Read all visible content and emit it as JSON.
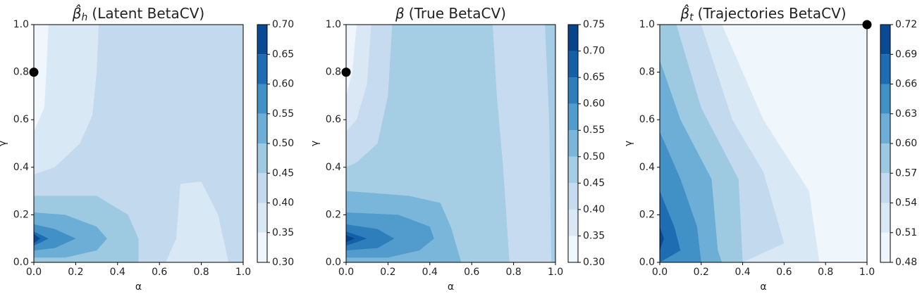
{
  "chart_data": [
    {
      "type": "contour",
      "title": {
        "symbol": "β̂",
        "sub": "h",
        "text": "(Latent BetaCV)"
      },
      "xlabel": "α",
      "ylabel": "γ",
      "xlim": [
        0,
        1
      ],
      "ylim": [
        0,
        1
      ],
      "xticks": [
        {
          "value": 0,
          "label": "0.0"
        },
        0.2,
        0.4,
        0.6,
        0.8,
        {
          "value": 1,
          "label": "1.0"
        }
      ],
      "yticks": [
        {
          "value": 0,
          "label": "0.0"
        },
        0.2,
        0.4,
        0.6,
        0.8,
        {
          "value": 1,
          "label": "1.0"
        }
      ],
      "levels": [
        {
          "value": 0.3,
          "label": "0.30"
        },
        0.35,
        {
          "value": 0.4,
          "label": "0.40"
        },
        0.45,
        {
          "value": 0.5,
          "label": "0.50"
        },
        0.55,
        {
          "value": 0.6,
          "label": "0.60"
        },
        0.65,
        {
          "value": 0.7,
          "label": "0.70"
        }
      ],
      "colors": [
        "#eff6fc",
        "#d9e8f5",
        "#c3daee",
        "#9dcae1",
        "#6caed6",
        "#4191c6",
        "#1e6db2",
        "#084b94"
      ],
      "bands": [
        {
          "level": 0.4,
          "x": [
            0,
            1,
            1,
            0
          ],
          "y": [
            0,
            0,
            1,
            1
          ]
        },
        {
          "level": 0.35,
          "x": [
            0,
            0.31,
            0.3,
            0.28,
            0.22,
            0.1,
            0
          ],
          "y": [
            1,
            1,
            0.8,
            0.62,
            0.5,
            0.4,
            0.37
          ]
        },
        {
          "level": 0.35,
          "x": [
            0.63,
            0.68,
            0.7,
            0.8,
            0.88,
            0.93
          ],
          "y": [
            0,
            0.1,
            0.33,
            0.34,
            0.2,
            0
          ]
        },
        {
          "level": 0.3,
          "x": [
            0,
            0.07,
            0.06,
            0.05,
            0
          ],
          "y": [
            1,
            1,
            0.8,
            0.65,
            0.55
          ]
        },
        {
          "level": 0.45,
          "x": [
            0,
            0.3,
            0.45,
            0.5,
            0.5,
            0
          ],
          "y": [
            0.28,
            0.28,
            0.2,
            0.1,
            0,
            0
          ]
        },
        {
          "level": 0.5,
          "x": [
            0,
            0.15,
            0.3,
            0.35,
            0.3,
            0.15,
            0
          ],
          "y": [
            0.21,
            0.2,
            0.15,
            0.1,
            0.05,
            0.02,
            0.02
          ]
        },
        {
          "level": 0.55,
          "x": [
            0,
            0.1,
            0.2,
            0.1,
            0
          ],
          "y": [
            0.16,
            0.14,
            0.1,
            0.06,
            0.05
          ]
        },
        {
          "level": 0.6,
          "x": [
            0,
            0.07,
            0
          ],
          "y": [
            0.13,
            0.1,
            0.07
          ]
        },
        {
          "level": 0.65,
          "x": [
            0,
            0.03,
            0
          ],
          "y": [
            0.12,
            0.1,
            0.08
          ]
        }
      ],
      "marker": {
        "x": 0,
        "y": 0.8
      }
    },
    {
      "type": "contour",
      "title": {
        "symbol": "β",
        "text": "(True BetaCV)"
      },
      "xlabel": "α",
      "ylabel": "γ",
      "xlim": [
        0,
        1
      ],
      "ylim": [
        0,
        1
      ],
      "xticks": [
        {
          "value": 0,
          "label": "0.0"
        },
        0.2,
        0.4,
        0.6,
        0.8,
        {
          "value": 1,
          "label": "1.0"
        }
      ],
      "yticks": [
        {
          "value": 0,
          "label": "0.0"
        },
        0.2,
        0.4,
        0.6,
        0.8,
        {
          "value": 1,
          "label": "1.0"
        }
      ],
      "levels": [
        {
          "value": 0.3,
          "label": "0.30"
        },
        0.35,
        {
          "value": 0.4,
          "label": "0.40"
        },
        0.45,
        {
          "value": 0.5,
          "label": "0.50"
        },
        0.55,
        {
          "value": 0.6,
          "label": "0.60"
        },
        0.65,
        {
          "value": 0.7,
          "label": "0.70"
        },
        0.75
      ],
      "colors": [
        "#eff6fc",
        "#dae8f5",
        "#c6dbef",
        "#a5cde3",
        "#7ab6d9",
        "#519ccc",
        "#2f7ebc",
        "#1460a8",
        "#08448a"
      ],
      "bands": [
        {
          "level": 0.45,
          "x": [
            0,
            1,
            1,
            0
          ],
          "y": [
            0,
            0,
            1,
            1
          ]
        },
        {
          "level": 0.4,
          "x": [
            0.7,
            0.95,
            0.97,
            0.98,
            0.78,
            0.75,
            0.72
          ],
          "y": [
            1,
            1,
            0.6,
            0,
            0,
            0.4,
            0.7
          ]
        },
        {
          "level": 0.4,
          "x": [
            0,
            0.22,
            0.2,
            0.15,
            0.05,
            0
          ],
          "y": [
            1,
            1,
            0.7,
            0.5,
            0.42,
            0.4
          ]
        },
        {
          "level": 0.35,
          "x": [
            0,
            0.12,
            0.1,
            0.05,
            0
          ],
          "y": [
            1,
            1,
            0.75,
            0.6,
            0.55
          ]
        },
        {
          "level": 0.3,
          "x": [
            0,
            0.05,
            0.03,
            0
          ],
          "y": [
            1,
            1,
            0.8,
            0.7
          ]
        },
        {
          "level": 0.5,
          "x": [
            0,
            0.3,
            0.45,
            0.5,
            0.55,
            0
          ],
          "y": [
            0.3,
            0.28,
            0.25,
            0.15,
            0,
            0
          ]
        },
        {
          "level": 0.55,
          "x": [
            0,
            0.25,
            0.4,
            0.42,
            0.35,
            0.2,
            0
          ],
          "y": [
            0.21,
            0.2,
            0.15,
            0.1,
            0.05,
            0.02,
            0.02
          ]
        },
        {
          "level": 0.6,
          "x": [
            0,
            0.15,
            0.23,
            0.15,
            0
          ],
          "y": [
            0.16,
            0.14,
            0.1,
            0.06,
            0.05
          ]
        },
        {
          "level": 0.65,
          "x": [
            0,
            0.1,
            0
          ],
          "y": [
            0.13,
            0.1,
            0.07
          ]
        },
        {
          "level": 0.7,
          "x": [
            0,
            0.04,
            0
          ],
          "y": [
            0.115,
            0.1,
            0.085
          ]
        }
      ],
      "marker": {
        "x": 0,
        "y": 0.8
      }
    },
    {
      "type": "contour",
      "title": {
        "symbol": "β̂",
        "sub": "t",
        "text": "(Trajectories BetaCV)"
      },
      "xlabel": "α",
      "ylabel": "γ",
      "xlim": [
        0,
        1
      ],
      "ylim": [
        0,
        1
      ],
      "xticks": [
        {
          "value": 0,
          "label": "0.0"
        },
        0.2,
        0.4,
        0.6,
        0.8,
        {
          "value": 1,
          "label": "1.0"
        }
      ],
      "yticks": [
        {
          "value": 0,
          "label": "0.0"
        },
        0.2,
        0.4,
        0.6,
        0.8,
        {
          "value": 1,
          "label": "1.0"
        }
      ],
      "levels": [
        0.48,
        0.51,
        0.54,
        0.57,
        {
          "value": 0.6,
          "label": "0.60"
        },
        0.63,
        0.66,
        0.69,
        0.72
      ],
      "colors": [
        "#eff6fc",
        "#d9e8f5",
        "#c3daee",
        "#9dcae1",
        "#6caed6",
        "#4191c6",
        "#1e6db2",
        "#084b94"
      ],
      "bands": [
        {
          "level": 0.48,
          "x": [
            0,
            1,
            1,
            0
          ],
          "y": [
            0,
            0,
            1,
            1
          ]
        },
        {
          "level": 0.51,
          "x": [
            0,
            0.3,
            0.5,
            0.72,
            0.77,
            0
          ],
          "y": [
            1,
            1,
            0.6,
            0.3,
            0,
            0
          ]
        },
        {
          "level": 0.54,
          "x": [
            0,
            0.2,
            0.35,
            0.5,
            0.6,
            0.4,
            0
          ],
          "y": [
            1,
            1,
            0.6,
            0.38,
            0.08,
            0,
            0
          ]
        },
        {
          "level": 0.57,
          "x": [
            0,
            0.08,
            0.2,
            0.38,
            0.4,
            0
          ],
          "y": [
            1,
            1,
            0.65,
            0.35,
            0,
            0
          ]
        },
        {
          "level": 0.6,
          "x": [
            0,
            0.1,
            0.25,
            0.28,
            0.3,
            0
          ],
          "y": [
            0.85,
            0.6,
            0.35,
            0.05,
            0,
            0
          ]
        },
        {
          "level": 0.63,
          "x": [
            0,
            0.1,
            0.18,
            0.2,
            0
          ],
          "y": [
            0.55,
            0.35,
            0.15,
            0,
            0
          ]
        },
        {
          "level": 0.66,
          "x": [
            0,
            0.07,
            0.1,
            0
          ],
          "y": [
            0.3,
            0.15,
            0.05,
            0
          ]
        },
        {
          "level": 0.69,
          "x": [
            0,
            0.02,
            0
          ],
          "y": [
            0.15,
            0.1,
            0.05
          ]
        }
      ],
      "marker": {
        "x": 1,
        "y": 1
      }
    }
  ]
}
